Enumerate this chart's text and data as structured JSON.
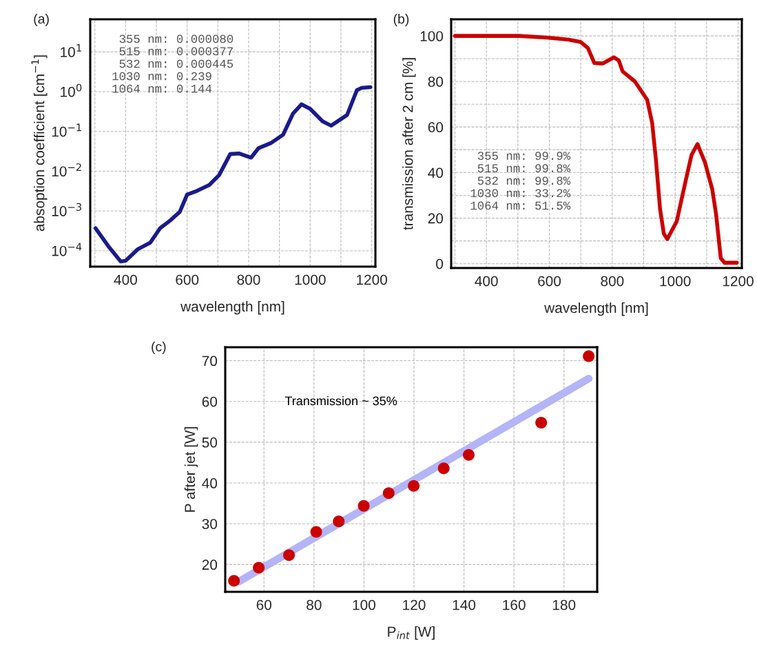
{
  "chart_data": [
    {
      "type": "line",
      "title": "(a)",
      "xlabel": "wavelength [nm]",
      "ylabel": "absoption coefficient [cm$^{−1}$]",
      "log": "y",
      "grid": true,
      "xlim": [
        285,
        1212
      ],
      "ylim": [
        4e-05,
        66
      ],
      "xticks": [
        {
          "value": 300,
          "label": null
        },
        400,
        {
          "value": 500,
          "label": null
        },
        600,
        {
          "value": 700,
          "label": null
        },
        800,
        {
          "value": 900,
          "label": null
        },
        1000,
        {
          "value": 1100,
          "label": null
        },
        1200
      ],
      "yticks": [
        {
          "value": 0.0001,
          "label": "10$^{−4}$"
        },
        {
          "value": 0.001,
          "label": "10$^{−3}$"
        },
        {
          "value": 0.01,
          "label": "10$^{−2}$"
        },
        {
          "value": 0.1,
          "label": "10$^{−1}$"
        },
        {
          "value": 1,
          "label": "10$^{0}$"
        },
        {
          "value": 10,
          "label": "10$^{1}$"
        }
      ],
      "annotations": [
        "  355 nm: 0.000080\n  515 nm: 0.000377\n  532 nm: 0.000445\n 1030 nm: 0.239\n 1064 nm: 0.144"
      ],
      "series": [
        {
          "color": "#1a1a8c",
          "x": [
            302,
            344,
            384,
            400,
            440,
            480,
            512,
            544,
            576,
            600,
            632,
            672,
            704,
            740,
            768,
            808,
            832,
            872,
            912,
            944,
            972,
            1000,
            1040,
            1068,
            1120,
            1152,
            1168,
            1196
          ],
          "values": [
            0.00037,
            0.00013,
            5.4e-05,
            5.6e-05,
            0.00011,
            0.00016,
            0.00037,
            0.00057,
            0.00095,
            0.0026,
            0.0032,
            0.0045,
            0.008,
            0.027,
            0.028,
            0.022,
            0.038,
            0.051,
            0.083,
            0.28,
            0.48,
            0.37,
            0.18,
            0.14,
            0.26,
            1.1,
            1.25,
            1.3
          ]
        }
      ]
    },
    {
      "type": "line",
      "title": "(b)",
      "xlabel": "wavelength [nm]",
      "ylabel": "transmission after 2 cm [%]",
      "grid": true,
      "xlim": [
        288,
        1212
      ],
      "ylim": [
        -1.9,
        107.3
      ],
      "xticks": [
        {
          "value": 300,
          "label": null
        },
        400,
        {
          "value": 500,
          "label": null
        },
        600,
        {
          "value": 700,
          "label": null
        },
        800,
        {
          "value": 900,
          "label": null
        },
        1000,
        {
          "value": 1100,
          "label": null
        },
        1200
      ],
      "yticks": [
        0,
        {
          "value": 10,
          "label": null
        },
        20,
        {
          "value": 30,
          "label": null
        },
        40,
        {
          "value": 50,
          "label": null
        },
        60,
        {
          "value": 70,
          "label": null
        },
        80,
        {
          "value": 90,
          "label": null
        },
        100
      ],
      "annotations": [
        "  355 nm: 99.9%\n  515 nm: 99.8%\n  532 nm: 99.8%\n 1030 nm: 33.2%\n 1064 nm: 51.5%"
      ],
      "series": [
        {
          "color": "#cc0000",
          "x": [
            300,
            505,
            598,
            661,
            700,
            723,
            743,
            770,
            805,
            821,
            833,
            872,
            911,
            927,
            939,
            952,
            964,
            975,
            1005,
            1036,
            1052,
            1071,
            1095,
            1118,
            1130,
            1145,
            1157,
            1196
          ],
          "values": [
            100,
            100,
            99.2,
            98.4,
            97.3,
            94.6,
            88.1,
            87.9,
            90.6,
            89.2,
            84.4,
            80,
            72,
            61.7,
            45.5,
            24,
            13.2,
            10.8,
            18.6,
            38,
            47.7,
            52.5,
            44.4,
            32.6,
            21.8,
            2.4,
            0.4,
            0.4
          ]
        }
      ]
    },
    {
      "type": "scatter",
      "title": "(c)",
      "xlabel": "P$_{int}$ [W]",
      "ylabel": "P after jet [W]",
      "grid": true,
      "xlim": [
        44.5,
        193.3
      ],
      "ylim": [
        13.3,
        73.3
      ],
      "xticks": [
        60,
        80,
        100,
        120,
        140,
        160,
        180
      ],
      "yticks": [
        20,
        30,
        40,
        50,
        60,
        70
      ],
      "annotations": [
        "Transmission ~ 35%"
      ],
      "series": [
        {
          "type": "line",
          "color": "#b4b4f8",
          "x": [
            49.9,
            189.9
          ],
          "values": [
            15.8,
            65.6
          ]
        },
        {
          "type": "scatter",
          "marker": "circle",
          "color": "#cc0000",
          "x": [
            48.0,
            57.9,
            70.0,
            80.9,
            89.9,
            99.9,
            109.9,
            119.9,
            131.9,
            141.9,
            170.9,
            189.9
          ],
          "values": [
            16.0,
            19.2,
            22.3,
            28.0,
            30.6,
            34.4,
            37.5,
            39.3,
            43.6,
            46.9,
            54.8,
            71.1
          ]
        }
      ]
    }
  ]
}
